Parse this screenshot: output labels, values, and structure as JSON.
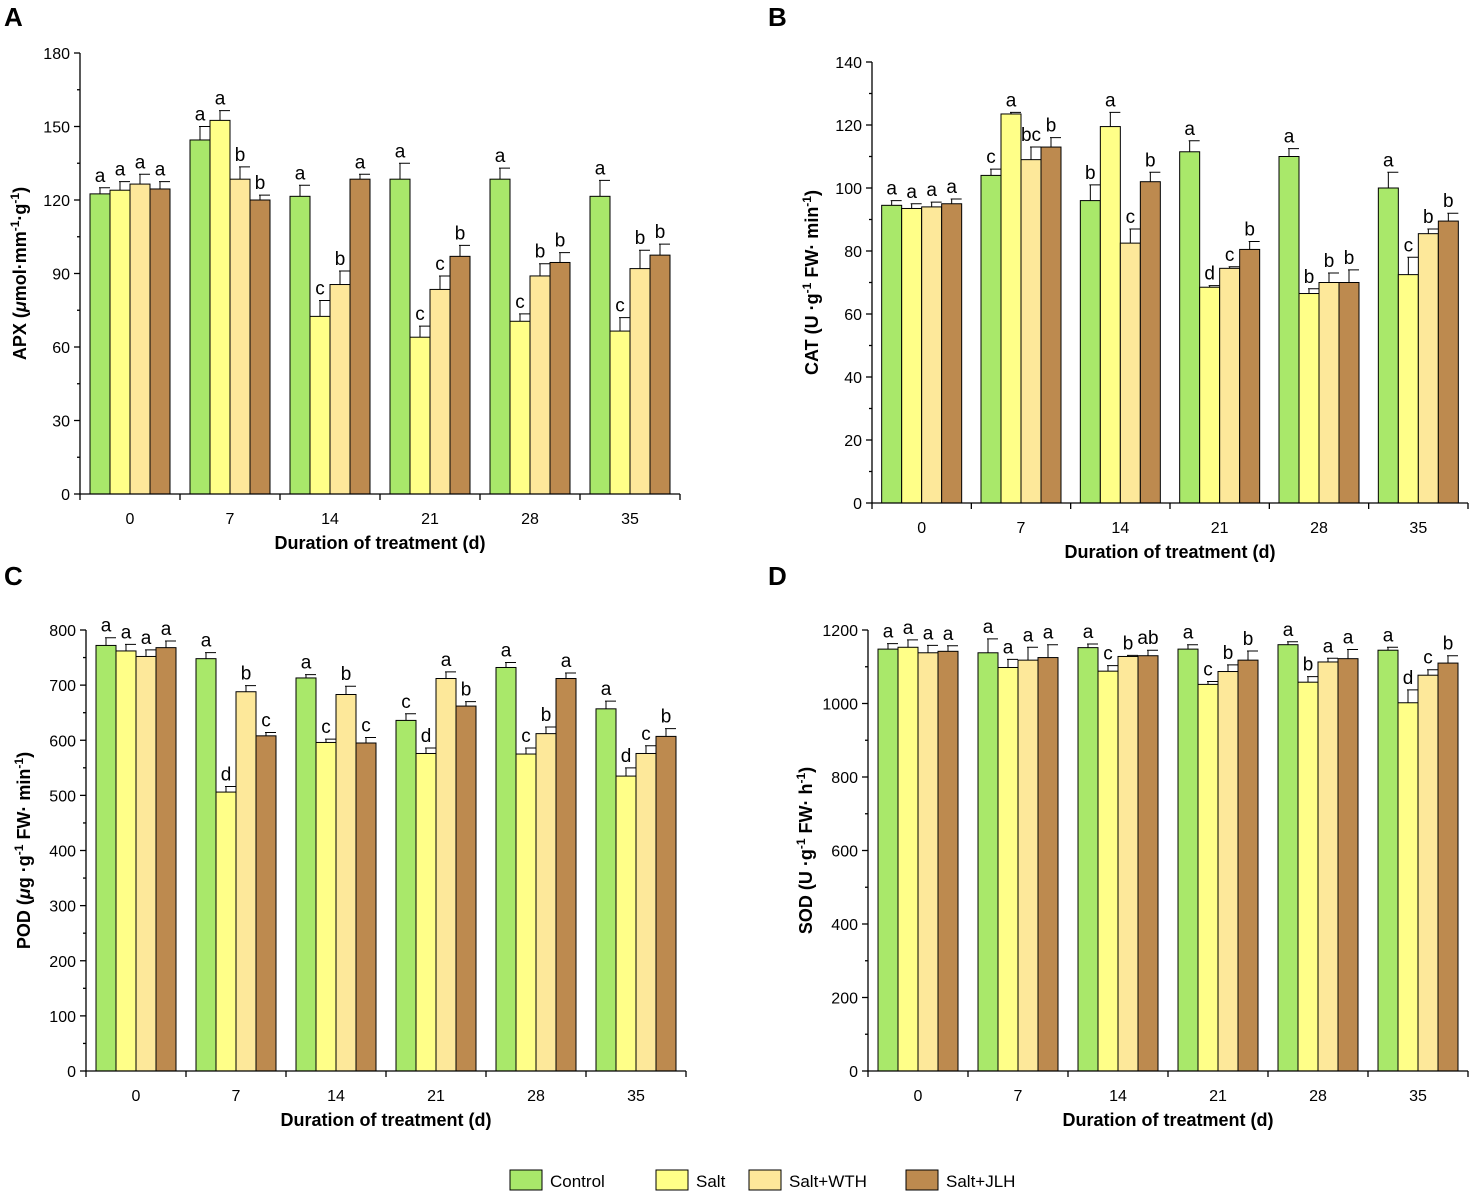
{
  "chart_data": [
    {
      "type": "bar",
      "panel": "A",
      "ylabel": "APX (μmol·mm⁻¹·g⁻¹)",
      "ylabel_parts": [
        {
          "t": "APX ("
        },
        {
          "t": "μ",
          "italic": true
        },
        {
          "t": "mol·mm"
        },
        {
          "t": "-1",
          "sup": true
        },
        {
          "t": "·g"
        },
        {
          "t": "-1",
          "sup": true
        },
        {
          "t": ")"
        }
      ],
      "xlabel": "Duration of treatment (d)",
      "ylim": [
        0,
        180
      ],
      "yticks": [
        0,
        30,
        60,
        90,
        120,
        150,
        180
      ],
      "categories": [
        "0",
        "7",
        "14",
        "21",
        "28",
        "35"
      ],
      "series": [
        {
          "name": "Control",
          "values": [
            122.5,
            144.5,
            121.5,
            128.5,
            128.5,
            121.5
          ],
          "errors": [
            2.5,
            5.5,
            4.5,
            6.5,
            4.5,
            6.5
          ],
          "labels": [
            "a",
            "a",
            "a",
            "a",
            "a",
            "a"
          ]
        },
        {
          "name": "Salt",
          "values": [
            124,
            152.5,
            72.5,
            64,
            70.5,
            66.5
          ],
          "errors": [
            3.5,
            4,
            6.5,
            4.5,
            3,
            5.5
          ],
          "labels": [
            "a",
            "a",
            "c",
            "c",
            "c",
            "c"
          ]
        },
        {
          "name": "Salt+WTH",
          "values": [
            126.5,
            128.5,
            85.5,
            83.5,
            89,
            92
          ],
          "errors": [
            4,
            5,
            5.5,
            5.5,
            5,
            7.5
          ],
          "labels": [
            "a",
            "b",
            "b",
            "c",
            "b",
            "b"
          ]
        },
        {
          "name": "Salt+JLH",
          "values": [
            124.5,
            120,
            128.5,
            97,
            94.5,
            97.5
          ],
          "errors": [
            3,
            2,
            2,
            4.5,
            4,
            4.5
          ],
          "labels": [
            "a",
            "b",
            "a",
            "b",
            "b",
            "b"
          ]
        }
      ]
    },
    {
      "type": "bar",
      "panel": "B",
      "ylabel": "CAT (U ·g⁻¹ FW· min⁻¹)",
      "ylabel_parts": [
        {
          "t": "CAT (U ·g"
        },
        {
          "t": "-1",
          "sup": true
        },
        {
          "t": " FW· min"
        },
        {
          "t": "-1",
          "sup": true
        },
        {
          "t": ")"
        }
      ],
      "xlabel": "Duration of treatment (d)",
      "ylim": [
        0,
        140
      ],
      "yticks": [
        0,
        20,
        40,
        60,
        80,
        100,
        120,
        140
      ],
      "categories": [
        "0",
        "7",
        "14",
        "21",
        "28",
        "35"
      ],
      "series": [
        {
          "name": "Control",
          "values": [
            94.5,
            104,
            96,
            111.5,
            110,
            100
          ],
          "errors": [
            1.5,
            2,
            5,
            3.5,
            2.5,
            5
          ],
          "labels": [
            "a",
            "c",
            "b",
            "a",
            "a",
            "a"
          ]
        },
        {
          "name": "Salt",
          "values": [
            93.5,
            123.5,
            119.5,
            68.5,
            66.5,
            72.5
          ],
          "errors": [
            1.5,
            0.5,
            4.5,
            0.5,
            1.5,
            5.5
          ],
          "labels": [
            "a",
            "a",
            "a",
            "d",
            "b",
            "c"
          ]
        },
        {
          "name": "Salt+WTH",
          "values": [
            94,
            109,
            82.5,
            74.5,
            70,
            85.5
          ],
          "errors": [
            1.5,
            4,
            4.5,
            0.5,
            3,
            1.5
          ],
          "labels": [
            "a",
            "bc",
            "c",
            "c",
            "b",
            "b"
          ]
        },
        {
          "name": "Salt+JLH",
          "values": [
            95,
            113,
            102,
            80.5,
            70,
            89.5
          ],
          "errors": [
            1.5,
            3,
            3,
            2.5,
            4,
            2.5
          ],
          "labels": [
            "a",
            "b",
            "b",
            "b",
            "b",
            "b"
          ]
        }
      ]
    },
    {
      "type": "bar",
      "panel": "C",
      "ylabel": "POD (μg ·g⁻¹ FW· min⁻¹)",
      "ylabel_parts": [
        {
          "t": "POD ("
        },
        {
          "t": "μ",
          "italic": true
        },
        {
          "t": "g ·g"
        },
        {
          "t": "-1",
          "sup": true
        },
        {
          "t": " FW· min"
        },
        {
          "t": "-1",
          "sup": true
        },
        {
          "t": ")"
        }
      ],
      "xlabel": "Duration of treatment (d)",
      "ylim": [
        0,
        800
      ],
      "yticks": [
        0,
        100,
        200,
        300,
        400,
        500,
        600,
        700,
        800
      ],
      "categories": [
        "0",
        "7",
        "14",
        "21",
        "28",
        "35"
      ],
      "series": [
        {
          "name": "Control",
          "values": [
            772,
            748,
            713,
            636,
            732,
            657
          ],
          "errors": [
            14,
            11,
            6,
            12,
            9,
            14
          ],
          "labels": [
            "a",
            "a",
            "a",
            "c",
            "a",
            "a"
          ]
        },
        {
          "name": "Salt",
          "values": [
            762,
            506,
            596,
            576,
            575,
            535
          ],
          "errors": [
            12,
            10,
            6,
            10,
            11,
            15
          ],
          "labels": [
            "a",
            "d",
            "c",
            "d",
            "c",
            "d"
          ]
        },
        {
          "name": "Salt+WTH",
          "values": [
            752,
            688,
            683,
            712,
            612,
            576
          ],
          "errors": [
            12,
            11,
            15,
            12,
            12,
            14
          ],
          "labels": [
            "a",
            "b",
            "b",
            "a",
            "b",
            "c"
          ]
        },
        {
          "name": "Salt+JLH",
          "values": [
            768,
            608,
            595,
            662,
            712,
            607
          ],
          "errors": [
            12,
            6,
            10,
            8,
            10,
            14
          ],
          "labels": [
            "a",
            "c",
            "c",
            "b",
            "a",
            "b"
          ]
        }
      ]
    },
    {
      "type": "bar",
      "panel": "D",
      "ylabel": "SOD (U ·g⁻¹ FW· h⁻¹)",
      "ylabel_parts": [
        {
          "t": "SOD (U ·g"
        },
        {
          "t": "-1",
          "sup": true
        },
        {
          "t": " FW· h"
        },
        {
          "t": "-1",
          "sup": true
        },
        {
          "t": ")"
        }
      ],
      "xlabel": "Duration of treatment (d)",
      "ylim": [
        0,
        1200
      ],
      "yticks": [
        0,
        200,
        400,
        600,
        800,
        1000,
        1200
      ],
      "categories": [
        "0",
        "7",
        "14",
        "21",
        "28",
        "35"
      ],
      "series": [
        {
          "name": "Control",
          "values": [
            1148,
            1138,
            1152,
            1148,
            1160,
            1145
          ],
          "errors": [
            15,
            38,
            10,
            12,
            8,
            8
          ],
          "labels": [
            "a",
            "a",
            "a",
            "a",
            "a",
            "a"
          ]
        },
        {
          "name": "Salt",
          "values": [
            1153,
            1098,
            1088,
            1052,
            1058,
            1002
          ],
          "errors": [
            20,
            22,
            15,
            8,
            15,
            35
          ],
          "labels": [
            "a",
            "a",
            "c",
            "c",
            "b",
            "d"
          ]
        },
        {
          "name": "Salt+WTH",
          "values": [
            1138,
            1118,
            1128,
            1087,
            1113,
            1077
          ],
          "errors": [
            20,
            35,
            3,
            18,
            10,
            15
          ],
          "labels": [
            "a",
            "a",
            "b",
            "b",
            "a",
            "c"
          ]
        },
        {
          "name": "Salt+JLH",
          "values": [
            1142,
            1125,
            1130,
            1118,
            1122,
            1110
          ],
          "errors": [
            15,
            35,
            15,
            25,
            25,
            20
          ],
          "labels": [
            "a",
            "a",
            "ab",
            "b",
            "a",
            "b"
          ]
        }
      ]
    }
  ],
  "legend": {
    "entries": [
      "Control",
      "Salt",
      "Salt+WTH",
      "Salt+JLH"
    ],
    "placement": "bottom-center"
  },
  "colors": {
    "Control": "#a9e86a",
    "Salt": "#ffff88",
    "Salt+WTH": "#fde89a",
    "Salt+JLH": "#bd8a4f"
  }
}
